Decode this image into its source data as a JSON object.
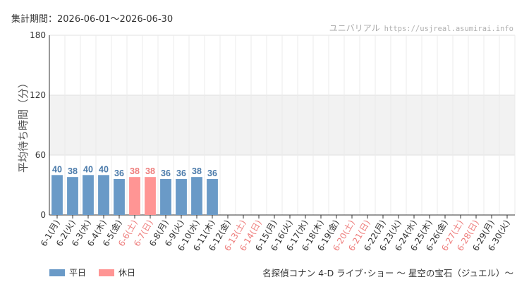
{
  "header": {
    "period": "集計期間：2026-06-01〜2026-06-30",
    "site_name": "ユニバリアル",
    "site_url": "https://usjreal.asumirai.info"
  },
  "legend": {
    "weekday_label": "平日",
    "holiday_label": "休日"
  },
  "caption": "名探偵コナン 4-D ライブ･ショー 〜 星空の宝石（ジュエル）〜",
  "colors": {
    "weekday": "#6a9ac7",
    "holiday": "#ff9594",
    "weekday_text": "#4a7aaa",
    "holiday_text": "#ee7d7c",
    "band": "#f2f2f2",
    "grid": "#e0e0e0"
  },
  "chart_data": {
    "type": "bar",
    "ylabel": "平均待ち時間（分）",
    "ylim": [
      0,
      180
    ],
    "yticks": [
      0,
      60,
      120,
      180
    ],
    "shaded_band": [
      60,
      120
    ],
    "categories": [
      "6-1(月)",
      "6-2(火)",
      "6-3(水)",
      "6-4(木)",
      "6-5(金)",
      "6-6(土)",
      "6-7(日)",
      "6-8(月)",
      "6-9(火)",
      "6-10(水)",
      "6-11(木)",
      "6-12(金)",
      "6-13(土)",
      "6-14(日)",
      "6-15(月)",
      "6-16(火)",
      "6-17(水)",
      "6-18(木)",
      "6-19(金)",
      "6-20(土)",
      "6-21(日)",
      "6-22(月)",
      "6-23(火)",
      "6-24(水)",
      "6-25(木)",
      "6-26(金)",
      "6-27(土)",
      "6-28(日)",
      "6-29(月)",
      "6-30(火)"
    ],
    "holiday": [
      false,
      false,
      false,
      false,
      false,
      true,
      true,
      false,
      false,
      false,
      false,
      false,
      true,
      true,
      false,
      false,
      false,
      false,
      false,
      true,
      true,
      false,
      false,
      false,
      false,
      false,
      true,
      true,
      false,
      false
    ],
    "values": [
      40,
      38,
      40,
      40,
      36,
      38,
      38,
      36,
      36,
      38,
      36,
      null,
      null,
      null,
      null,
      null,
      null,
      null,
      null,
      null,
      null,
      null,
      null,
      null,
      null,
      null,
      null,
      null,
      null,
      null
    ]
  }
}
